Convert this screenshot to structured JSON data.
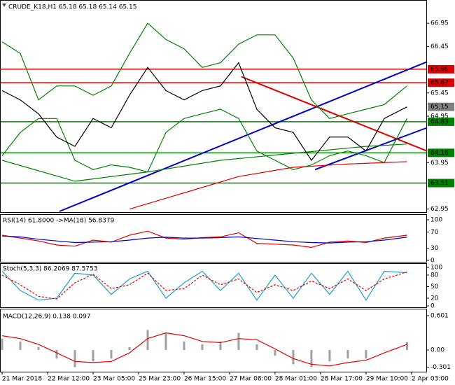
{
  "chart_data": [
    {
      "type": "line",
      "title": "CRUDE_K18,H1  65.18 65.18 65.14 65.15",
      "xlim": [
        0,
        9.34
      ],
      "ylim": [
        62.9,
        67.33
      ],
      "yticks": [
        66.95,
        66.45,
        65.45,
        64.95,
        63.95,
        62.95
      ],
      "series": [
        {
          "color": "#008000",
          "x": [
            0,
            0.4,
            0.8,
            1.2,
            1.6,
            2.0,
            2.4,
            2.8,
            3.2,
            3.6,
            4.0,
            4.4,
            4.8,
            5.2,
            5.6,
            6.0,
            6.4,
            6.8,
            7.2,
            7.6,
            8.0,
            8.4,
            8.9
          ],
          "values": [
            66.55,
            66.3,
            65.3,
            65.6,
            65.6,
            65.4,
            65.6,
            66.3,
            66.95,
            66.6,
            66.4,
            66.0,
            66.1,
            66.5,
            66.7,
            66.7,
            66.2,
            65.3,
            64.9,
            65.0,
            65.1,
            65.2,
            65.6
          ]
        },
        {
          "color": "#008000",
          "x": [
            0,
            0.4,
            0.8,
            1.2,
            1.6,
            2.0,
            2.4,
            2.8,
            3.2,
            3.6,
            4.0,
            4.4,
            4.8,
            5.2,
            5.6,
            6.0,
            6.4,
            6.8,
            7.2,
            7.6,
            8.0,
            8.4,
            8.9
          ],
          "values": [
            64.1,
            64.6,
            64.9,
            64.9,
            64.0,
            63.8,
            63.9,
            63.85,
            63.75,
            64.6,
            64.9,
            65.0,
            65.1,
            64.9,
            64.2,
            64.0,
            63.8,
            63.9,
            64.1,
            64.2,
            64.1,
            63.95,
            64.9
          ]
        },
        {
          "color": "#008000",
          "x": [
            0,
            1.6,
            3.2,
            4.8,
            6.4,
            8.0,
            8.9
          ],
          "values": [
            64.0,
            63.55,
            63.75,
            64.0,
            64.15,
            64.3,
            64.35
          ]
        },
        {
          "color": "#e00000",
          "x": [
            2.8,
            4.0,
            5.2,
            6.4,
            7.6,
            8.9
          ],
          "values": [
            62.95,
            63.3,
            63.65,
            63.85,
            63.92,
            63.97
          ]
        },
        {
          "color": "#000000",
          "x": [
            0,
            0.4,
            0.8,
            1.2,
            1.6,
            2.0,
            2.4,
            2.8,
            3.2,
            3.6,
            4.0,
            4.4,
            4.8,
            5.2,
            5.6,
            6.0,
            6.4,
            6.8,
            7.2,
            7.6,
            8.0,
            8.4,
            8.9
          ],
          "values": [
            65.5,
            65.3,
            65.0,
            64.5,
            64.3,
            64.9,
            64.7,
            65.4,
            66.0,
            65.5,
            65.3,
            65.5,
            65.6,
            66.1,
            65.1,
            64.7,
            64.6,
            64.0,
            64.5,
            64.5,
            64.2,
            64.9,
            65.15
          ]
        }
      ],
      "trendlines": [
        {
          "color": "#0000cc",
          "x": [
            1.26,
            9.34
          ],
          "values": [
            62.9,
            66.12
          ]
        },
        {
          "color": "#0000cc",
          "x": [
            6.88,
            9.34
          ],
          "values": [
            63.8,
            64.7
          ]
        },
        {
          "color": "#e00000",
          "x": [
            5.26,
            9.34
          ],
          "values": [
            65.8,
            64.2
          ]
        }
      ],
      "levels": [
        {
          "value": 65.96,
          "color": "#e00000"
        },
        {
          "value": 65.67,
          "color": "#e00000"
        },
        {
          "value": 64.83,
          "color": "#008000"
        },
        {
          "value": 64.16,
          "color": "#008000"
        },
        {
          "value": 63.51,
          "color": "#008000"
        }
      ],
      "last_price": 65.15
    },
    {
      "type": "line",
      "title": "RSI(14) 61.8000  ->MA(18) 56.8379",
      "xlim": [
        0,
        9.34
      ],
      "ylim": [
        0,
        100
      ],
      "yticks": [
        100,
        70,
        30,
        0
      ],
      "series": [
        {
          "color": "#e00000",
          "x": [
            0,
            0.4,
            0.8,
            1.2,
            1.6,
            2.0,
            2.4,
            2.8,
            3.2,
            3.6,
            4.0,
            4.4,
            4.8,
            5.2,
            5.6,
            6.0,
            6.4,
            6.8,
            7.2,
            7.6,
            8.0,
            8.4,
            8.9
          ],
          "values": [
            62,
            55,
            48,
            38,
            35,
            50,
            45,
            62,
            72,
            55,
            52,
            56,
            58,
            68,
            42,
            40,
            38,
            32,
            45,
            48,
            44,
            55,
            62
          ]
        },
        {
          "color": "#0000cc",
          "x": [
            0,
            0.4,
            0.8,
            1.2,
            1.6,
            2.0,
            2.4,
            2.8,
            3.2,
            3.6,
            4.0,
            4.4,
            4.8,
            5.2,
            5.6,
            6.0,
            6.4,
            6.8,
            7.2,
            7.6,
            8.0,
            8.4,
            8.9
          ],
          "values": [
            60,
            58,
            52,
            48,
            44,
            45,
            46,
            50,
            55,
            57,
            55,
            55,
            56,
            58,
            54,
            50,
            46,
            44,
            43,
            45,
            46,
            50,
            57
          ]
        }
      ]
    },
    {
      "type": "line",
      "title": "Stoch(5,3,3) 86.2069 87.5753",
      "xlim": [
        0,
        9.34
      ],
      "ylim": [
        0,
        100
      ],
      "yticks": [
        100,
        80,
        50,
        20,
        0
      ],
      "series": [
        {
          "color": "#1ca0c8",
          "x": [
            0,
            0.4,
            0.8,
            1.2,
            1.6,
            2.0,
            2.4,
            2.8,
            3.2,
            3.6,
            4.0,
            4.4,
            4.8,
            5.2,
            5.6,
            6.0,
            6.4,
            6.8,
            7.2,
            7.6,
            8.0,
            8.4,
            8.9
          ],
          "values": [
            90,
            40,
            15,
            20,
            85,
            80,
            30,
            70,
            90,
            20,
            60,
            90,
            40,
            85,
            15,
            80,
            20,
            85,
            30,
            90,
            15,
            90,
            86
          ]
        },
        {
          "color": "#e00000",
          "dashed": true,
          "x": [
            0,
            0.4,
            0.8,
            1.2,
            1.6,
            2.0,
            2.4,
            2.8,
            3.2,
            3.6,
            4.0,
            4.4,
            4.8,
            5.2,
            5.6,
            6.0,
            6.4,
            6.8,
            7.2,
            7.6,
            8.0,
            8.4,
            8.9
          ],
          "values": [
            80,
            55,
            25,
            18,
            60,
            82,
            45,
            55,
            85,
            40,
            45,
            80,
            55,
            70,
            35,
            55,
            40,
            65,
            45,
            70,
            40,
            70,
            88
          ]
        }
      ]
    },
    {
      "type": "bar",
      "title": "MACD(12,26,9) 0.138 0.097",
      "xlim": [
        0,
        9.34
      ],
      "ylim": [
        -0.368,
        0.687
      ],
      "yticks": [
        0.601,
        {
          "value": 0,
          "label": "0.00"
        },
        -0.301
      ],
      "color": "#a0a0a0",
      "x": [
        0,
        0.4,
        0.8,
        1.2,
        1.6,
        2.0,
        2.4,
        2.8,
        3.2,
        3.6,
        4.0,
        4.4,
        4.8,
        5.2,
        5.6,
        6.0,
        6.4,
        6.8,
        7.2,
        7.6,
        8.0,
        8.4,
        8.9
      ],
      "values": [
        0.2,
        0.15,
        0.05,
        -0.15,
        -0.3,
        -0.2,
        -0.15,
        0.05,
        0.35,
        0.3,
        0.15,
        0.1,
        0.15,
        0.3,
        0.1,
        -0.1,
        -0.25,
        -0.3,
        -0.2,
        -0.15,
        -0.15,
        0.0,
        0.138
      ],
      "series": [
        {
          "color": "#e00000",
          "x": [
            0,
            0.4,
            0.8,
            1.2,
            1.6,
            2.0,
            2.4,
            2.8,
            3.2,
            3.6,
            4.0,
            4.4,
            4.8,
            5.2,
            5.6,
            6.0,
            6.4,
            6.8,
            7.2,
            7.6,
            8.0,
            8.4,
            8.9
          ],
          "values": [
            0.25,
            0.2,
            0.1,
            -0.05,
            -0.2,
            -0.22,
            -0.2,
            -0.05,
            0.2,
            0.3,
            0.25,
            0.15,
            0.13,
            0.2,
            0.18,
            0.02,
            -0.15,
            -0.25,
            -0.28,
            -0.22,
            -0.18,
            -0.05,
            0.097
          ]
        }
      ],
      "xticks": [
        {
          "value": 0,
          "label": "21 Mar 2018"
        },
        {
          "value": 1,
          "label": "22 Mar 12:00"
        },
        {
          "value": 2,
          "label": "23 Mar 05:00"
        },
        {
          "value": 3,
          "label": "25 Mar 23:00"
        },
        {
          "value": 4,
          "label": "26 Mar 15:00"
        },
        {
          "value": 5,
          "label": "27 Mar 08:00"
        },
        {
          "value": 6,
          "label": "28 Mar 01:00"
        },
        {
          "value": 7,
          "label": "28 Mar 17:00"
        },
        {
          "value": 8,
          "label": "29 Mar 10:00"
        },
        {
          "value": 9,
          "label": "2 Apr 03:00"
        }
      ]
    }
  ]
}
